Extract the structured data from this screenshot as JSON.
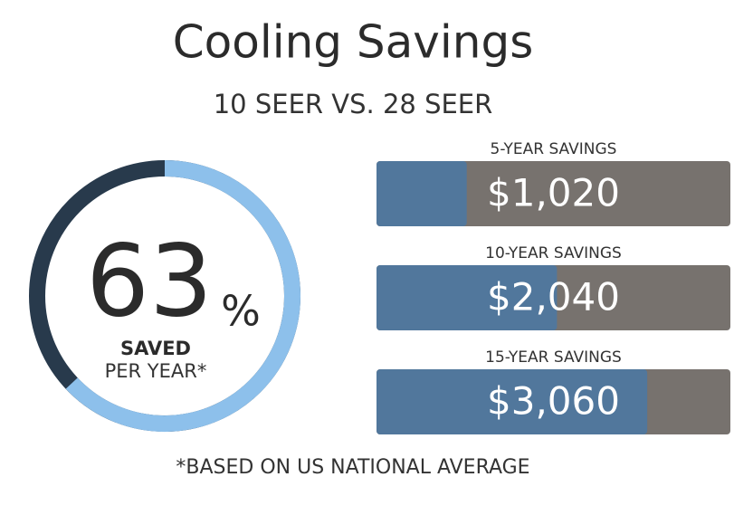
{
  "header": {
    "title": "Cooling Savings",
    "subtitle": "10 SEER VS. 28 SEER"
  },
  "footnote": "*BASED ON US NATIONAL AVERAGE",
  "chart_data": [
    {
      "type": "donut",
      "values": [
        63
      ],
      "unit": "%",
      "label": "SAVED",
      "sublabel": "PER YEAR*",
      "ylim": [
        0,
        100
      ],
      "color": "#8dc0eb",
      "track_color": "#283a4c"
    },
    {
      "type": "bar",
      "orientation": "horizontal",
      "categories": [
        "5-YEAR SAVINGS",
        "10-YEAR SAVINGS",
        "15-YEAR SAVINGS"
      ],
      "values": [
        1020,
        2040,
        3060
      ],
      "value_labels": [
        "$1,020",
        "$2,040",
        "$3,060"
      ],
      "xlim": [
        0,
        4000
      ],
      "color": "#51779c",
      "track_color": "#77726e"
    }
  ]
}
